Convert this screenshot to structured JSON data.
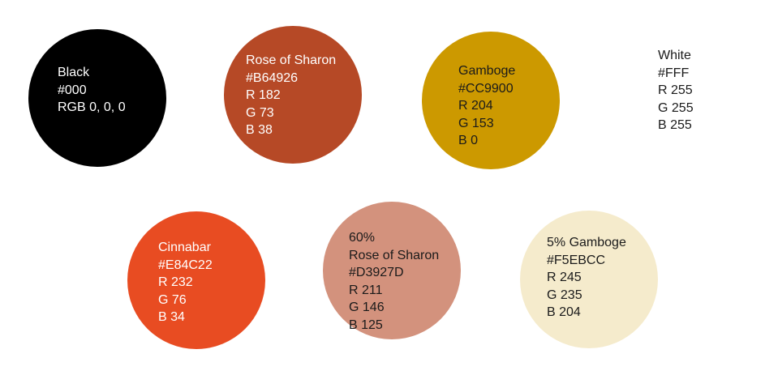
{
  "colors": {
    "black": "#000000",
    "rose_of_sharon": "#B64926",
    "gamboge": "#CC9900",
    "white": "#FFFFFF",
    "cinnabar": "#E84C22",
    "rose_of_sharon_60": "#D3927D",
    "gamboge_5": "#F5EBCC"
  },
  "swatches": {
    "black": {
      "lines": [
        "Black",
        "#000",
        "RGB 0, 0, 0"
      ]
    },
    "rose_of_sharon": {
      "lines": [
        "Rose of Sharon",
        "#B64926",
        "R 182",
        "G 73",
        "B 38"
      ]
    },
    "gamboge": {
      "lines": [
        "Gamboge",
        "#CC9900",
        "R 204",
        "G 153",
        "B 0"
      ]
    },
    "white": {
      "lines": [
        "White",
        "#FFF",
        "R 255",
        "G 255",
        "B 255"
      ]
    },
    "cinnabar": {
      "lines": [
        "Cinnabar",
        "#E84C22",
        "R 232",
        "G 76",
        "B 34"
      ]
    },
    "rose_of_sharon_60": {
      "lines": [
        "60%",
        "Rose of Sharon",
        "#D3927D",
        "R 211",
        "G 146",
        "B 125"
      ]
    },
    "gamboge_5": {
      "lines": [
        "5% Gamboge",
        "#F5EBCC",
        "R 245",
        "G 235",
        "B 204"
      ]
    }
  }
}
